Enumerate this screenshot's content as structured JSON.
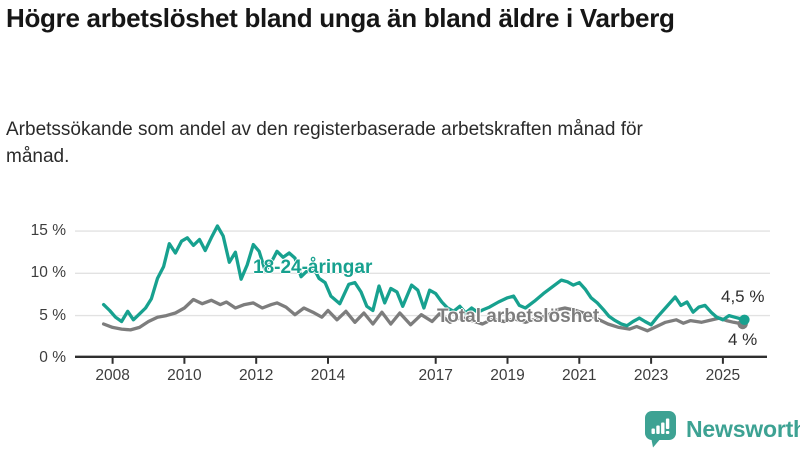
{
  "title": "Högre arbetslöshet bland unga än bland äldre i Varberg",
  "subtitle": "Arbetssökande som andel av den registerbaserade arbetskraften månad för månad.",
  "branding": {
    "logo_text": "Newsworthy"
  },
  "colors": {
    "youth_line": "#17a18f",
    "total_line": "#7d7d7d",
    "axis": "#2f2f2f",
    "grid": "#e2e2e2",
    "tick_text": "#3d3d3d",
    "value_text": "#2e2e2e",
    "brand_teal": "#3da293"
  },
  "chart_data": {
    "type": "line",
    "title": "Högre arbetslöshet bland unga än bland äldre i Varberg",
    "subtitle": "Arbetssökande som andel av den registerbaserade arbetskraften månad för månad.",
    "unit": "%",
    "grid": true,
    "x_axis": {
      "ticks": [
        {
          "label": "2008",
          "year": 2008
        },
        {
          "label": "2010",
          "year": 2010
        },
        {
          "label": "2012",
          "year": 2012
        },
        {
          "label": "2014",
          "year": 2014
        },
        {
          "label": "2017",
          "year": 2017
        },
        {
          "label": "2019",
          "year": 2019
        },
        {
          "label": "2021",
          "year": 2021
        },
        {
          "label": "2023",
          "year": 2023
        },
        {
          "label": "2025",
          "year": 2025
        }
      ],
      "range": [
        2007.6,
        2026.3
      ]
    },
    "y_axis": {
      "ticks": [
        {
          "label": "0 %",
          "value": 0
        },
        {
          "label": "5 %",
          "value": 5
        },
        {
          "label": "10 %",
          "value": 10
        },
        {
          "label": "15 %",
          "value": 15
        }
      ],
      "range": [
        0,
        17
      ]
    },
    "series": [
      {
        "name": "18-24-åringar",
        "color": "#17a18f",
        "end_label": "4,5 %",
        "end_value": 4.5,
        "points": [
          [
            2007.75,
            6.3
          ],
          [
            2007.92,
            5.6
          ],
          [
            2008.08,
            4.8
          ],
          [
            2008.25,
            4.3
          ],
          [
            2008.42,
            5.5
          ],
          [
            2008.58,
            4.5
          ],
          [
            2008.75,
            5.2
          ],
          [
            2008.92,
            5.9
          ],
          [
            2009.08,
            7.0
          ],
          [
            2009.25,
            9.4
          ],
          [
            2009.42,
            10.8
          ],
          [
            2009.58,
            13.5
          ],
          [
            2009.75,
            12.4
          ],
          [
            2009.92,
            13.8
          ],
          [
            2010.08,
            14.2
          ],
          [
            2010.25,
            13.3
          ],
          [
            2010.42,
            14.0
          ],
          [
            2010.58,
            12.7
          ],
          [
            2010.75,
            14.2
          ],
          [
            2010.92,
            15.6
          ],
          [
            2011.08,
            14.4
          ],
          [
            2011.25,
            11.3
          ],
          [
            2011.42,
            12.5
          ],
          [
            2011.58,
            9.3
          ],
          [
            2011.75,
            11.0
          ],
          [
            2011.92,
            13.4
          ],
          [
            2012.08,
            12.6
          ],
          [
            2012.25,
            10.3
          ],
          [
            2012.42,
            11.3
          ],
          [
            2012.58,
            12.6
          ],
          [
            2012.75,
            11.9
          ],
          [
            2012.92,
            12.4
          ],
          [
            2013.08,
            11.8
          ],
          [
            2013.25,
            9.6
          ],
          [
            2013.42,
            10.3
          ],
          [
            2013.58,
            10.8
          ],
          [
            2013.75,
            9.4
          ],
          [
            2013.92,
            8.9
          ],
          [
            2014.08,
            7.3
          ],
          [
            2014.33,
            6.4
          ],
          [
            2014.58,
            8.7
          ],
          [
            2014.75,
            8.9
          ],
          [
            2014.92,
            7.8
          ],
          [
            2015.08,
            6.1
          ],
          [
            2015.25,
            5.6
          ],
          [
            2015.42,
            8.5
          ],
          [
            2015.58,
            6.5
          ],
          [
            2015.75,
            8.2
          ],
          [
            2015.92,
            7.8
          ],
          [
            2016.08,
            6.1
          ],
          [
            2016.33,
            8.6
          ],
          [
            2016.5,
            8.0
          ],
          [
            2016.67,
            5.9
          ],
          [
            2016.83,
            8.0
          ],
          [
            2017.0,
            7.6
          ],
          [
            2017.17,
            6.6
          ],
          [
            2017.33,
            5.9
          ],
          [
            2017.5,
            5.5
          ],
          [
            2017.67,
            6.1
          ],
          [
            2017.83,
            5.3
          ],
          [
            2018.0,
            5.9
          ],
          [
            2018.17,
            5.4
          ],
          [
            2018.33,
            5.7
          ],
          [
            2018.5,
            6.0
          ],
          [
            2018.75,
            6.6
          ],
          [
            2019.0,
            7.1
          ],
          [
            2019.17,
            7.3
          ],
          [
            2019.33,
            6.2
          ],
          [
            2019.5,
            5.9
          ],
          [
            2019.75,
            6.7
          ],
          [
            2020.0,
            7.6
          ],
          [
            2020.25,
            8.4
          ],
          [
            2020.5,
            9.2
          ],
          [
            2020.67,
            9.0
          ],
          [
            2020.83,
            8.6
          ],
          [
            2021.0,
            8.9
          ],
          [
            2021.17,
            8.1
          ],
          [
            2021.33,
            7.1
          ],
          [
            2021.5,
            6.5
          ],
          [
            2021.67,
            5.7
          ],
          [
            2021.83,
            4.9
          ],
          [
            2022.0,
            4.4
          ],
          [
            2022.17,
            4.0
          ],
          [
            2022.33,
            3.8
          ],
          [
            2022.5,
            4.3
          ],
          [
            2022.67,
            4.7
          ],
          [
            2022.83,
            4.3
          ],
          [
            2023.0,
            3.9
          ],
          [
            2023.17,
            4.8
          ],
          [
            2023.42,
            6.0
          ],
          [
            2023.67,
            7.2
          ],
          [
            2023.83,
            6.2
          ],
          [
            2024.0,
            6.6
          ],
          [
            2024.17,
            5.4
          ],
          [
            2024.33,
            6.0
          ],
          [
            2024.5,
            6.2
          ],
          [
            2024.67,
            5.4
          ],
          [
            2024.83,
            4.8
          ],
          [
            2025.0,
            4.5
          ],
          [
            2025.17,
            5.0
          ],
          [
            2025.33,
            4.8
          ],
          [
            2025.6,
            4.5
          ]
        ]
      },
      {
        "name": "Total arbetslöshet",
        "color": "#7d7d7d",
        "end_label": "4 %",
        "end_value": 4.0,
        "points": [
          [
            2007.75,
            4.0
          ],
          [
            2008.0,
            3.6
          ],
          [
            2008.25,
            3.4
          ],
          [
            2008.5,
            3.3
          ],
          [
            2008.75,
            3.6
          ],
          [
            2009.0,
            4.3
          ],
          [
            2009.25,
            4.8
          ],
          [
            2009.5,
            5.0
          ],
          [
            2009.75,
            5.3
          ],
          [
            2010.0,
            5.9
          ],
          [
            2010.25,
            6.9
          ],
          [
            2010.5,
            6.4
          ],
          [
            2010.75,
            6.8
          ],
          [
            2011.0,
            6.3
          ],
          [
            2011.17,
            6.6
          ],
          [
            2011.42,
            5.9
          ],
          [
            2011.67,
            6.3
          ],
          [
            2011.92,
            6.5
          ],
          [
            2012.17,
            5.9
          ],
          [
            2012.42,
            6.3
          ],
          [
            2012.58,
            6.5
          ],
          [
            2012.83,
            6.0
          ],
          [
            2013.08,
            5.1
          ],
          [
            2013.33,
            5.9
          ],
          [
            2013.58,
            5.4
          ],
          [
            2013.83,
            4.8
          ],
          [
            2014.0,
            5.6
          ],
          [
            2014.25,
            4.5
          ],
          [
            2014.5,
            5.5
          ],
          [
            2014.75,
            4.2
          ],
          [
            2015.0,
            5.3
          ],
          [
            2015.25,
            4.0
          ],
          [
            2015.5,
            5.4
          ],
          [
            2015.75,
            4.0
          ],
          [
            2016.0,
            5.3
          ],
          [
            2016.3,
            3.9
          ],
          [
            2016.6,
            5.1
          ],
          [
            2016.9,
            4.3
          ],
          [
            2017.1,
            5.2
          ],
          [
            2017.4,
            4.2
          ],
          [
            2017.7,
            4.8
          ],
          [
            2018.0,
            4.4
          ],
          [
            2018.3,
            4.0
          ],
          [
            2018.6,
            4.6
          ],
          [
            2018.9,
            4.3
          ],
          [
            2019.2,
            4.6
          ],
          [
            2019.5,
            4.2
          ],
          [
            2019.8,
            4.6
          ],
          [
            2020.1,
            5.0
          ],
          [
            2020.4,
            5.7
          ],
          [
            2020.6,
            5.9
          ],
          [
            2020.9,
            5.6
          ],
          [
            2021.2,
            5.2
          ],
          [
            2021.5,
            4.6
          ],
          [
            2021.8,
            4.0
          ],
          [
            2022.1,
            3.6
          ],
          [
            2022.4,
            3.4
          ],
          [
            2022.6,
            3.7
          ],
          [
            2022.9,
            3.2
          ],
          [
            2023.1,
            3.6
          ],
          [
            2023.4,
            4.2
          ],
          [
            2023.7,
            4.5
          ],
          [
            2023.9,
            4.1
          ],
          [
            2024.1,
            4.4
          ],
          [
            2024.4,
            4.2
          ],
          [
            2024.6,
            4.4
          ],
          [
            2024.9,
            4.7
          ],
          [
            2025.1,
            4.4
          ],
          [
            2025.3,
            4.2
          ],
          [
            2025.55,
            4.0
          ]
        ]
      }
    ]
  }
}
